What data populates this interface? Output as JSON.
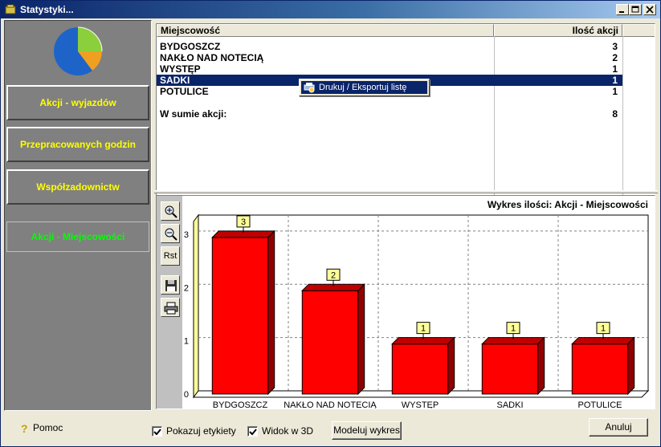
{
  "window": {
    "title": "Statystyki..."
  },
  "nav": {
    "items": [
      {
        "label": "Akcji - wyjazdów"
      },
      {
        "label": "Przepracowanych godzin"
      },
      {
        "label": "Współzadownictw"
      },
      {
        "label": "Akcji - Miejscowości"
      }
    ],
    "active_color": "#00ff00",
    "inactive_color": "#ffff00"
  },
  "table": {
    "columns": [
      "Miejscowość",
      "Ilość akcji"
    ],
    "rows": [
      {
        "place": "BYDGOSZCZ",
        "count": "3"
      },
      {
        "place": "NAKŁO NAD NOTECIĄ",
        "count": "2"
      },
      {
        "place": "WYSTĘP",
        "count": "1"
      },
      {
        "place": "SADKI",
        "count": "1"
      },
      {
        "place": "POTULICE",
        "count": "1"
      }
    ],
    "selected_row": "SADKI",
    "total_label": "W sumie akcji:",
    "total_value": "8"
  },
  "context_menu": {
    "item": "Drukuj / Eksportuj listę"
  },
  "chart_tools": {
    "reset_label": "Rst"
  },
  "chart_data": {
    "type": "bar",
    "title": "Wykres ilości: Akcji - Miejscowości",
    "categories": [
      "BYDGOSZCZ",
      "NAKŁO NAD NOTECIĄ",
      "WYSTĘP",
      "SADKI",
      "POTULICE"
    ],
    "values": [
      3,
      2,
      1,
      1,
      1
    ],
    "yticks": [
      0,
      1,
      2,
      3
    ],
    "ylim": [
      0,
      3.3
    ],
    "grid": true,
    "bar_color": "#ff0000",
    "label_color": "#ffff99",
    "view_3d": true
  },
  "bottom": {
    "help_label": "Pomoc",
    "show_labels": "Pokazuj etykiety",
    "view_3d": "Widok w 3D",
    "model_button": "Modeluj wykres",
    "cancel_button": "Anuluj"
  }
}
